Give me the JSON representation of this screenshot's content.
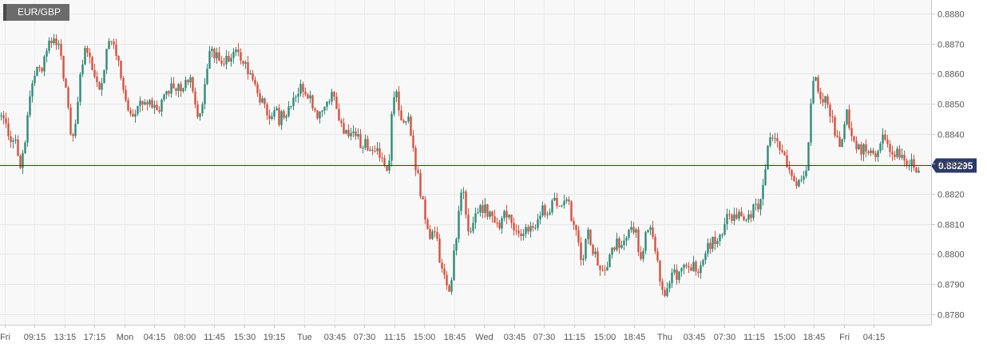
{
  "symbol": "EUR/GBP",
  "colors": {
    "up": "#2e8b76",
    "down": "#d9503f",
    "price_line": "#2b3a67",
    "price_tag": "#2b3a67"
  },
  "chart_data": {
    "type": "candlestick",
    "title": "EUR/GBP",
    "xlabel": "",
    "ylabel": "",
    "ylim": [
      0.87765,
      0.88845
    ],
    "grid": true,
    "y_ticks": [
      0.878,
      0.879,
      0.88,
      0.881,
      0.882,
      0.883,
      0.884,
      0.885,
      0.886,
      0.887,
      0.888
    ],
    "y_tick_labels": [
      "0.8780",
      "0.8790",
      "0.8800",
      "0.8810",
      "0.8820",
      "0.8830",
      "0.8840",
      "0.8850",
      "0.8860",
      "0.8870",
      "0.8880"
    ],
    "x_tick_labels": [
      "Fri",
      "09:15",
      "13:15",
      "17:15",
      "Mon",
      "04:15",
      "08:00",
      "11:45",
      "15:30",
      "19:15",
      "Tue",
      "03:45",
      "07:30",
      "11:15",
      "15:00",
      "18:45",
      "Wed",
      "03:45",
      "07:30",
      "11:15",
      "15:00",
      "18:45",
      "Thu",
      "03:45",
      "07:30",
      "11:15",
      "15:00",
      "18:45",
      "Fri",
      "04:15"
    ],
    "current_price": 0.88295,
    "current_price_label": "0.88295",
    "close_path": [
      [
        0,
        0.8846
      ],
      [
        6,
        0.8842
      ],
      [
        12,
        0.8836
      ],
      [
        18,
        0.884
      ],
      [
        23,
        0.8828
      ],
      [
        28,
        0.8835
      ],
      [
        33,
        0.8845
      ],
      [
        38,
        0.8856
      ],
      [
        43,
        0.8862
      ],
      [
        50,
        0.8862
      ],
      [
        56,
        0.8866
      ],
      [
        60,
        0.8872
      ],
      [
        65,
        0.887
      ],
      [
        70,
        0.8872
      ],
      [
        75,
        0.8865
      ],
      [
        80,
        0.8856
      ],
      [
        85,
        0.8848
      ],
      [
        88,
        0.8836
      ],
      [
        92,
        0.884
      ],
      [
        96,
        0.8852
      ],
      [
        100,
        0.886
      ],
      [
        104,
        0.887
      ],
      [
        108,
        0.8866
      ],
      [
        113,
        0.8862
      ],
      [
        118,
        0.886
      ],
      [
        123,
        0.8856
      ],
      [
        128,
        0.886
      ],
      [
        133,
        0.8868
      ],
      [
        138,
        0.887
      ],
      [
        143,
        0.8866
      ],
      [
        148,
        0.8862
      ],
      [
        152,
        0.8856
      ],
      [
        157,
        0.8848
      ],
      [
        162,
        0.8846
      ],
      [
        170,
        0.8849
      ],
      [
        180,
        0.8852
      ],
      [
        190,
        0.885
      ],
      [
        198,
        0.8849
      ],
      [
        205,
        0.8852
      ],
      [
        212,
        0.8857
      ],
      [
        220,
        0.8856
      ],
      [
        228,
        0.8854
      ],
      [
        235,
        0.886
      ],
      [
        242,
        0.885
      ],
      [
        248,
        0.8846
      ],
      [
        253,
        0.8852
      ],
      [
        258,
        0.8862
      ],
      [
        262,
        0.8868
      ],
      [
        268,
        0.8866
      ],
      [
        275,
        0.8864
      ],
      [
        282,
        0.8866
      ],
      [
        290,
        0.8866
      ],
      [
        298,
        0.8866
      ],
      [
        305,
        0.8864
      ],
      [
        312,
        0.886
      ],
      [
        318,
        0.8856
      ],
      [
        324,
        0.8852
      ],
      [
        330,
        0.8848
      ],
      [
        336,
        0.8846
      ],
      [
        342,
        0.8848
      ],
      [
        348,
        0.8845
      ],
      [
        355,
        0.8846
      ],
      [
        362,
        0.8848
      ],
      [
        368,
        0.8851
      ],
      [
        374,
        0.8854
      ],
      [
        380,
        0.8856
      ],
      [
        386,
        0.8852
      ],
      [
        392,
        0.8849
      ],
      [
        398,
        0.8845
      ],
      [
        404,
        0.885
      ],
      [
        410,
        0.8852
      ],
      [
        416,
        0.8853
      ],
      [
        422,
        0.8846
      ],
      [
        428,
        0.8841
      ],
      [
        434,
        0.8839
      ],
      [
        440,
        0.884
      ],
      [
        446,
        0.8838
      ],
      [
        452,
        0.8836
      ],
      [
        458,
        0.8837
      ],
      [
        464,
        0.8835
      ],
      [
        470,
        0.8834
      ],
      [
        476,
        0.8831
      ],
      [
        482,
        0.8828
      ],
      [
        486,
        0.8833
      ],
      [
        490,
        0.8852
      ],
      [
        494,
        0.8856
      ],
      [
        498,
        0.885
      ],
      [
        502,
        0.8842
      ],
      [
        506,
        0.8845
      ],
      [
        510,
        0.8846
      ],
      [
        514,
        0.8838
      ],
      [
        518,
        0.883
      ],
      [
        522,
        0.8825
      ],
      [
        526,
        0.882
      ],
      [
        530,
        0.8815
      ],
      [
        534,
        0.8808
      ],
      [
        538,
        0.8806
      ],
      [
        542,
        0.8808
      ],
      [
        546,
        0.8803
      ],
      [
        550,
        0.8796
      ],
      [
        554,
        0.8792
      ],
      [
        558,
        0.879
      ],
      [
        562,
        0.8788
      ],
      [
        566,
        0.8798
      ],
      [
        570,
        0.8807
      ],
      [
        574,
        0.8818
      ],
      [
        578,
        0.8822
      ],
      [
        582,
        0.8812
      ],
      [
        586,
        0.8808
      ],
      [
        590,
        0.881
      ],
      [
        594,
        0.8813
      ],
      [
        598,
        0.8814
      ],
      [
        604,
        0.8815
      ],
      [
        610,
        0.8813
      ],
      [
        616,
        0.8814
      ],
      [
        622,
        0.881
      ],
      [
        628,
        0.8812
      ],
      [
        634,
        0.8813
      ],
      [
        640,
        0.881
      ],
      [
        646,
        0.8806
      ],
      [
        652,
        0.8808
      ],
      [
        658,
        0.881
      ],
      [
        664,
        0.8808
      ],
      [
        670,
        0.881
      ],
      [
        676,
        0.8814
      ],
      [
        682,
        0.8815
      ],
      [
        688,
        0.8816
      ],
      [
        694,
        0.8818
      ],
      [
        700,
        0.8818
      ],
      [
        706,
        0.8819
      ],
      [
        710,
        0.8819
      ],
      [
        714,
        0.8812
      ],
      [
        718,
        0.8808
      ],
      [
        722,
        0.8806
      ],
      [
        726,
        0.88
      ],
      [
        730,
        0.88
      ],
      [
        734,
        0.8808
      ],
      [
        738,
        0.8804
      ],
      [
        742,
        0.88
      ],
      [
        746,
        0.8798
      ],
      [
        750,
        0.8796
      ],
      [
        754,
        0.8792
      ],
      [
        758,
        0.8796
      ],
      [
        762,
        0.88
      ],
      [
        766,
        0.8802
      ],
      [
        770,
        0.8805
      ],
      [
        775,
        0.8804
      ],
      [
        780,
        0.8806
      ],
      [
        785,
        0.8808
      ],
      [
        790,
        0.8809
      ],
      [
        795,
        0.8806
      ],
      [
        800,
        0.8798
      ],
      [
        805,
        0.8802
      ],
      [
        810,
        0.881
      ],
      [
        815,
        0.8806
      ],
      [
        820,
        0.8798
      ],
      [
        825,
        0.8792
      ],
      [
        830,
        0.8786
      ],
      [
        835,
        0.879
      ],
      [
        840,
        0.8794
      ],
      [
        845,
        0.8793
      ],
      [
        850,
        0.8795
      ],
      [
        856,
        0.8796
      ],
      [
        862,
        0.8797
      ],
      [
        868,
        0.8795
      ],
      [
        874,
        0.8796
      ],
      [
        880,
        0.8801
      ],
      [
        886,
        0.8803
      ],
      [
        892,
        0.8805
      ],
      [
        898,
        0.8806
      ],
      [
        904,
        0.8808
      ],
      [
        910,
        0.8812
      ],
      [
        916,
        0.8813
      ],
      [
        922,
        0.8814
      ],
      [
        928,
        0.8811
      ],
      [
        934,
        0.8812
      ],
      [
        940,
        0.8814
      ],
      [
        946,
        0.8816
      ],
      [
        952,
        0.8818
      ],
      [
        956,
        0.8824
      ],
      [
        960,
        0.8834
      ],
      [
        964,
        0.8838
      ],
      [
        968,
        0.884
      ],
      [
        972,
        0.8836
      ],
      [
        976,
        0.8832
      ],
      [
        980,
        0.8833
      ],
      [
        984,
        0.883
      ],
      [
        988,
        0.8828
      ],
      [
        992,
        0.8826
      ],
      [
        996,
        0.8824
      ],
      [
        1000,
        0.8826
      ],
      [
        1004,
        0.8826
      ],
      [
        1008,
        0.883
      ],
      [
        1012,
        0.884
      ],
      [
        1016,
        0.8856
      ],
      [
        1020,
        0.8858
      ],
      [
        1024,
        0.8855
      ],
      [
        1028,
        0.8852
      ],
      [
        1032,
        0.8852
      ],
      [
        1036,
        0.8848
      ],
      [
        1040,
        0.8845
      ],
      [
        1044,
        0.884
      ],
      [
        1048,
        0.8836
      ],
      [
        1052,
        0.8836
      ],
      [
        1056,
        0.8844
      ],
      [
        1060,
        0.8848
      ],
      [
        1064,
        0.884
      ],
      [
        1068,
        0.8836
      ],
      [
        1074,
        0.8835
      ],
      [
        1080,
        0.8835
      ],
      [
        1086,
        0.8834
      ],
      [
        1092,
        0.8835
      ],
      [
        1098,
        0.8832
      ],
      [
        1104,
        0.8838
      ],
      [
        1110,
        0.8836
      ],
      [
        1116,
        0.8834
      ],
      [
        1122,
        0.8833
      ],
      [
        1128,
        0.8833
      ],
      [
        1134,
        0.8831
      ],
      [
        1140,
        0.883
      ],
      [
        1146,
        0.8828
      ],
      [
        1150,
        0.883
      ]
    ]
  }
}
